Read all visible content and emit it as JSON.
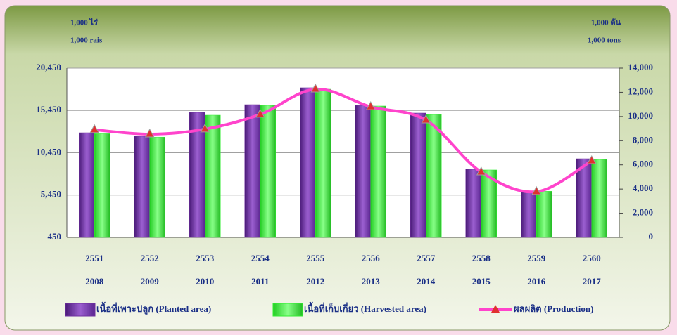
{
  "chart_data": {
    "type": "bar",
    "left_unit": [
      "1,000 ไร่",
      "1,000 rais"
    ],
    "right_unit": [
      "1,000 ตัน",
      "1,000 tons"
    ],
    "categories": [
      "2551",
      "2552",
      "2553",
      "2554",
      "2555",
      "2556",
      "2557",
      "2558",
      "2559",
      "2560"
    ],
    "categories_secondary": [
      "2008",
      "2009",
      "2010",
      "2011",
      "2012",
      "2013",
      "2014",
      "2015",
      "2016",
      "2017"
    ],
    "series": [
      {
        "name": "เนื้อที่เพาะปลูก (Planted area)",
        "color": "#7030a0",
        "type": "bar",
        "values": [
          12815,
          12400,
          15220,
          16135,
          18130,
          16050,
          15140,
          8500,
          5930,
          9745
        ]
      },
      {
        "name": "เนื้อที่เก็บเกี่ยว (Harvested area)",
        "color": "#33ee33",
        "type": "bar",
        "values": [
          12700,
          12300,
          14890,
          16050,
          17960,
          15970,
          14970,
          8420,
          5900,
          9660
        ]
      },
      {
        "name": "ผลผลิต (Production)",
        "color": "#ff44cc",
        "type": "line",
        "axis": "y2",
        "values": [
          8900,
          8540,
          8950,
          10170,
          12260,
          10800,
          9700,
          5400,
          3780,
          6330
        ]
      }
    ],
    "ylim": [
      450,
      20450
    ],
    "yticks": [
      450,
      {
        "value": 5450,
        "label": "5,450"
      },
      {
        "value": 10450,
        "label": "10,450"
      },
      {
        "value": 15450,
        "label": "15,450"
      },
      {
        "value": 20450,
        "label": "20,450"
      }
    ],
    "y2lim": [
      0,
      14000
    ],
    "y2ticks": [
      0,
      {
        "value": 2000,
        "label": "2,000"
      },
      {
        "value": 4000,
        "label": "4,000"
      },
      {
        "value": 6000,
        "label": "6,000"
      },
      {
        "value": 8000,
        "label": "8,000"
      },
      {
        "value": 10000,
        "label": "10,000"
      },
      {
        "value": 12000,
        "label": "12,000"
      },
      {
        "value": 14000,
        "label": "14,000"
      }
    ],
    "grid": true
  }
}
